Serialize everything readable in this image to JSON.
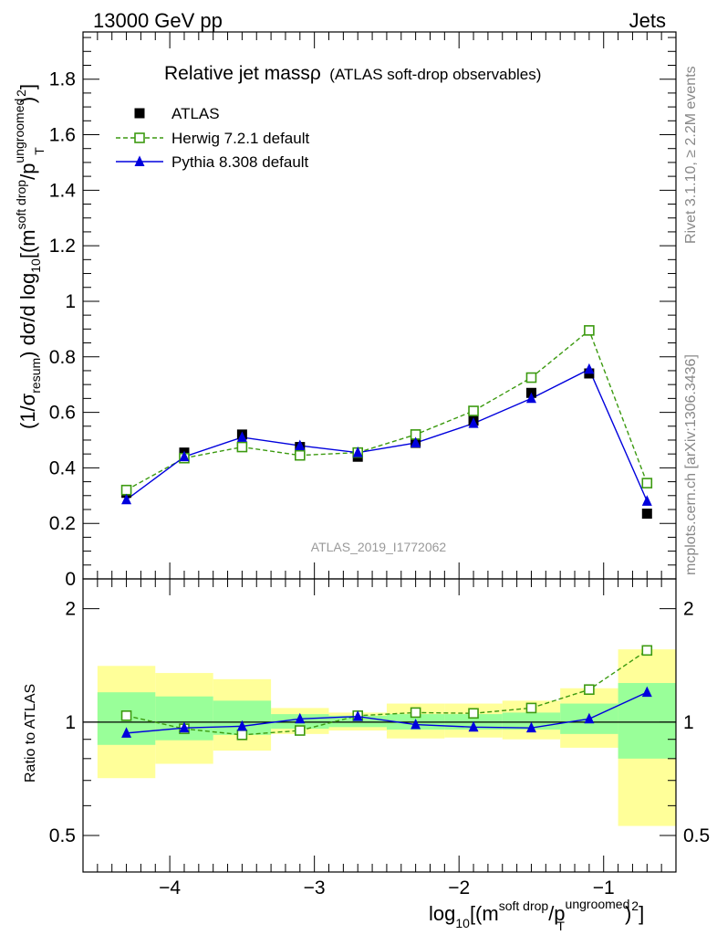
{
  "header": {
    "left": "13000 GeV pp",
    "right": "Jets"
  },
  "title_main": "Relative jet massρ",
  "title_sub": "(ATLAS soft-drop observables)",
  "side_text_top": "Rivet 3.1.10, ≥ 2.2M events",
  "side_text_bottom": "mcplots.cern.ch [arXiv:1306.3436]",
  "watermark": "ATLAS_2019_I1772062",
  "ylabel_main": {
    "a": "(1/σ",
    "a_sub": "resum",
    "b": ") dσ/d log",
    "b_sub": "10",
    "c": "[(m",
    "c_sup": "soft drop",
    "d": "/p",
    "d_sup": "ungroomed",
    "d_sub": "T",
    "e": ")",
    "e_sup": "2",
    "f": "]"
  },
  "xlabel": {
    "a": "log",
    "a_sub": "10",
    "b": "[(m",
    "b_sup": "soft drop",
    "c": "/p",
    "c_sup": "ungroomed",
    "c_sub": "T",
    "d": ")",
    "d_sup": "2",
    "e": "]"
  },
  "ylabel_ratio": "Ratio to ATLAS",
  "legend": [
    {
      "label": "ATLAS",
      "color": "#000000",
      "marker": "filled-square",
      "line": "none"
    },
    {
      "label": "Herwig 7.2.1 default",
      "color": "#3c9a10",
      "marker": "open-square",
      "line": "dashed"
    },
    {
      "label": "Pythia 8.308 default",
      "color": "#0000dd",
      "marker": "filled-triangle",
      "line": "solid"
    }
  ],
  "colors": {
    "herwig": "#3c9a10",
    "pythia": "#0000dd",
    "data": "#000000",
    "band_outer": "#ffff99",
    "band_inner": "#99ff99"
  },
  "chart_data": {
    "type": "line",
    "xlim": [
      -4.6,
      -0.5
    ],
    "x_ticks": [
      -4,
      -3,
      -2,
      -1
    ],
    "x_tick_labels": [
      "−4",
      "−3",
      "−2",
      "−1"
    ],
    "bin_edges": [
      -4.5,
      -4.1,
      -3.7,
      -3.3,
      -2.9,
      -2.5,
      -2.1,
      -1.7,
      -1.3,
      -0.9,
      -0.5
    ],
    "x": [
      -4.3,
      -3.9,
      -3.5,
      -3.1,
      -2.7,
      -2.3,
      -1.9,
      -1.5,
      -1.1,
      -0.7
    ],
    "main": {
      "ylim": [
        0,
        1.97
      ],
      "y_ticks": [
        0,
        0.2,
        0.4,
        0.6,
        0.8,
        1,
        1.2,
        1.4,
        1.6,
        1.8
      ],
      "y_tick_labels": [
        "0",
        "0.2",
        "0.4",
        "0.6",
        "0.8",
        "1",
        "1.2",
        "1.4",
        "1.6",
        "1.8"
      ],
      "series": [
        {
          "name": "ATLAS",
          "values": [
            0.31,
            0.455,
            0.52,
            0.475,
            0.44,
            0.49,
            0.57,
            0.67,
            0.74,
            0.235
          ]
        },
        {
          "name": "Herwig 7.2.1 default",
          "values": [
            0.32,
            0.435,
            0.475,
            0.445,
            0.455,
            0.52,
            0.605,
            0.725,
            0.895,
            0.345
          ]
        },
        {
          "name": "Pythia 8.308 default",
          "values": [
            0.285,
            0.44,
            0.51,
            0.48,
            0.455,
            0.49,
            0.56,
            0.65,
            0.755,
            0.28
          ]
        }
      ]
    },
    "ratio": {
      "scale": "log",
      "ylim": [
        0.4,
        2.4
      ],
      "y_ticks": [
        0.5,
        1,
        2
      ],
      "y_tick_labels": [
        "0.5",
        "1",
        "2"
      ],
      "band_outer": [
        [
          0.71,
          1.41
        ],
        [
          0.775,
          1.35
        ],
        [
          0.84,
          1.3
        ],
        [
          0.93,
          1.09
        ],
        [
          0.95,
          1.06
        ],
        [
          0.905,
          1.12
        ],
        [
          0.91,
          1.12
        ],
        [
          0.9,
          1.14
        ],
        [
          0.855,
          1.23
        ],
        [
          0.53,
          1.56
        ]
      ],
      "band_inner": [
        [
          0.87,
          1.2
        ],
        [
          0.895,
          1.17
        ],
        [
          0.925,
          1.14
        ],
        [
          0.96,
          1.05
        ],
        [
          0.97,
          1.04
        ],
        [
          0.955,
          1.05
        ],
        [
          0.955,
          1.05
        ],
        [
          0.955,
          1.06
        ],
        [
          0.93,
          1.12
        ],
        [
          0.8,
          1.27
        ]
      ],
      "series": [
        {
          "name": "Herwig 7.2.1 default",
          "values": [
            1.04,
            0.96,
            0.925,
            0.95,
            1.04,
            1.06,
            1.055,
            1.09,
            1.22,
            1.55
          ]
        },
        {
          "name": "Pythia 8.308 default",
          "values": [
            0.935,
            0.965,
            0.975,
            1.02,
            1.035,
            0.985,
            0.97,
            0.965,
            1.02,
            1.2
          ]
        }
      ]
    }
  }
}
